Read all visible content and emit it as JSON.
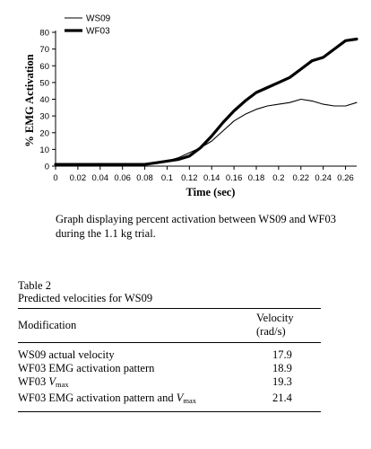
{
  "chart_data": {
    "type": "line",
    "xlabel": "Time (sec)",
    "ylabel": "% EMG Activation",
    "xlim": [
      0,
      0.27
    ],
    "ylim": [
      0,
      80
    ],
    "xticks": [
      0,
      0.02,
      0.04,
      0.06,
      0.08,
      0.1,
      0.12,
      0.14,
      0.16,
      0.18,
      0.2,
      0.22,
      0.24,
      0.26
    ],
    "xtick_labels": [
      "0",
      "0.02",
      "0.04",
      "0.06",
      "0.08",
      "0.1",
      "0.12",
      "0.14",
      "0.16",
      "0.18",
      "0.2",
      "0.22",
      "0.24",
      "0.26"
    ],
    "yticks": [
      0,
      10,
      20,
      30,
      40,
      50,
      60,
      70,
      80
    ],
    "ytick_labels": [
      "0",
      "10",
      "20",
      "30",
      "40",
      "50",
      "60",
      "70",
      "80"
    ],
    "legend_position": "top-left",
    "series": [
      {
        "name": "WS09",
        "x": [
          0,
          0.02,
          0.04,
          0.06,
          0.08,
          0.09,
          0.1,
          0.11,
          0.12,
          0.13,
          0.14,
          0.15,
          0.16,
          0.17,
          0.18,
          0.19,
          0.2,
          0.21,
          0.22,
          0.23,
          0.24,
          0.25,
          0.26,
          0.27
        ],
        "y": [
          1,
          1,
          1,
          1,
          1,
          2,
          3,
          5,
          8,
          11,
          15,
          21,
          27,
          31,
          34,
          36,
          37,
          38,
          40,
          39,
          37,
          36,
          36,
          38
        ]
      },
      {
        "name": "WF03",
        "x": [
          0,
          0.02,
          0.04,
          0.06,
          0.08,
          0.09,
          0.1,
          0.11,
          0.12,
          0.13,
          0.14,
          0.15,
          0.16,
          0.17,
          0.18,
          0.19,
          0.2,
          0.21,
          0.22,
          0.23,
          0.24,
          0.25,
          0.26,
          0.27
        ],
        "y": [
          1,
          1,
          1,
          1,
          1,
          2,
          3,
          4,
          6,
          11,
          18,
          26,
          33,
          39,
          44,
          47,
          50,
          53,
          58,
          63,
          65,
          70,
          75,
          76
        ]
      }
    ]
  },
  "caption": "Graph displaying percent activation between WS09 and WF03 during the 1.1 kg trial.",
  "table": {
    "label": "Table 2",
    "title": "Predicted velocities for WS09",
    "headers": {
      "modification": "Modification",
      "velocity": "Velocity (rad/s)"
    },
    "rows": [
      {
        "modification": "WS09 actual velocity",
        "velocity": "17.9"
      },
      {
        "modification": "WF03 EMG activation pattern",
        "velocity": "18.9"
      },
      {
        "modification_prefix": "WF03 ",
        "vmax_base": "V",
        "vmax_sub": "max",
        "velocity": "19.3"
      },
      {
        "modification_prefix": "WF03 EMG activation pattern and ",
        "vmax_base": "V",
        "vmax_sub": "max",
        "velocity": "21.4"
      }
    ]
  }
}
